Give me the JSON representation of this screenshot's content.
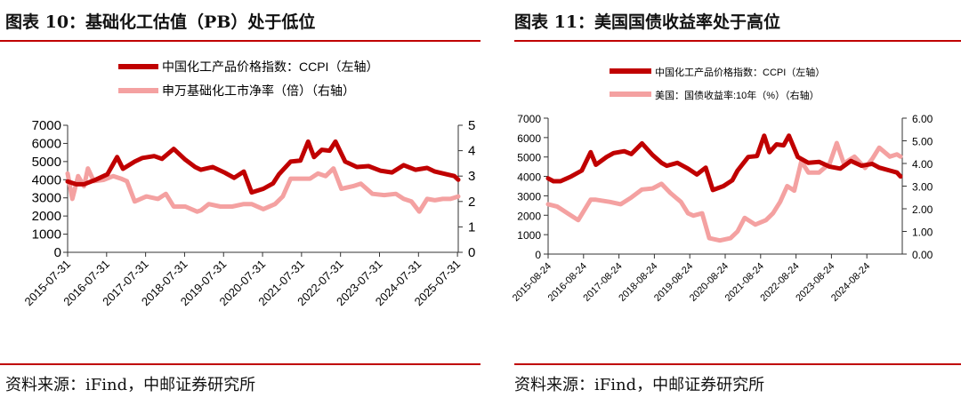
{
  "colors": {
    "accent_red": "#c00000",
    "series_dark": "#c00000",
    "series_light": "#f4a1a1"
  },
  "left": {
    "title": "图表 10：基础化工估值（PB）处于低位",
    "source": "资料来源：iFind，中邮证券研究所"
  },
  "right": {
    "title": "图表 11：美国国债收益率处于高位",
    "source": "资料来源：iFind，中邮证券研究所"
  },
  "chart_data": [
    {
      "type": "line",
      "legend_placement": "top",
      "grid": false,
      "x_ticks": [
        "2015-07-31",
        "2016-07-31",
        "2017-07-31",
        "2018-07-31",
        "2019-07-31",
        "2020-07-31",
        "2021-07-31",
        "2022-07-31",
        "2023-07-31",
        "2024-07-31",
        "2025-07-31"
      ],
      "y_ticks_left": [
        "0",
        "1000",
        "2000",
        "3000",
        "4000",
        "5000",
        "6000",
        "7000"
      ],
      "y_ticks_right": [
        "0",
        "1",
        "2",
        "3",
        "4",
        "5"
      ],
      "ylim_left": [
        0,
        7000
      ],
      "ylim_right": [
        0,
        5
      ],
      "series": [
        {
          "name": "中国化工产品价格指数：CCPI（左轴）",
          "axis": "left",
          "color": "#c00000",
          "x": [
            2015.58,
            2015.8,
            2016.0,
            2016.3,
            2016.6,
            2016.85,
            2017.0,
            2017.3,
            2017.5,
            2017.8,
            2018.0,
            2018.3,
            2018.6,
            2018.85,
            2019.0,
            2019.3,
            2019.6,
            2019.85,
            2020.1,
            2020.3,
            2020.6,
            2020.85,
            2021.0,
            2021.3,
            2021.55,
            2021.75,
            2021.9,
            2022.1,
            2022.3,
            2022.45,
            2022.7,
            2023.0,
            2023.3,
            2023.6,
            2023.9,
            2024.2,
            2024.5,
            2024.8,
            2025.0,
            2025.3,
            2025.5,
            2025.6
          ],
          "y": [
            3900,
            3750,
            3750,
            4000,
            4300,
            5250,
            4600,
            5000,
            5200,
            5300,
            5150,
            5700,
            5100,
            4700,
            4550,
            4700,
            4400,
            4100,
            4450,
            3300,
            3500,
            3800,
            4300,
            5000,
            5050,
            6100,
            5250,
            5650,
            5600,
            6100,
            5000,
            4700,
            4750,
            4500,
            4400,
            4800,
            4550,
            4650,
            4450,
            4300,
            4200,
            4000
          ]
        },
        {
          "name": "申万基础化工市净率（倍）（右轴）",
          "axis": "right",
          "color": "#f4a1a1",
          "x": [
            2015.58,
            2015.7,
            2015.85,
            2016.0,
            2016.1,
            2016.25,
            2016.5,
            2016.75,
            2016.95,
            2017.1,
            2017.3,
            2017.6,
            2017.9,
            2018.1,
            2018.3,
            2018.6,
            2018.9,
            2019.0,
            2019.2,
            2019.5,
            2019.8,
            2020.1,
            2020.3,
            2020.6,
            2020.9,
            2021.1,
            2021.3,
            2021.5,
            2021.7,
            2021.8,
            2022.0,
            2022.2,
            2022.4,
            2022.6,
            2022.9,
            2023.1,
            2023.4,
            2023.7,
            2024.0,
            2024.2,
            2024.4,
            2024.6,
            2024.8,
            2025.0,
            2025.2,
            2025.4,
            2025.6
          ],
          "y": [
            3.1,
            2.1,
            3.0,
            2.6,
            3.3,
            2.8,
            2.85,
            3.0,
            2.9,
            2.8,
            2.0,
            2.2,
            2.1,
            2.3,
            1.8,
            1.8,
            1.6,
            1.65,
            1.9,
            1.8,
            1.8,
            1.9,
            1.9,
            1.7,
            1.9,
            2.2,
            2.9,
            2.9,
            2.9,
            2.9,
            3.1,
            3.0,
            3.3,
            2.5,
            2.6,
            2.7,
            2.3,
            2.25,
            2.3,
            2.1,
            2.0,
            1.6,
            2.1,
            2.05,
            2.1,
            2.1,
            2.2
          ]
        }
      ]
    },
    {
      "type": "line",
      "legend_placement": "top",
      "grid": false,
      "x_ticks": [
        "2015-08-24",
        "2016-08-24",
        "2017-08-24",
        "2018-08-24",
        "2019-08-24",
        "2020-08-24",
        "2021-08-24",
        "2022-08-24",
        "2023-08-24",
        "2024-08-24"
      ],
      "y_ticks_left": [
        "0",
        "1000",
        "2000",
        "3000",
        "4000",
        "5000",
        "6000",
        "7000"
      ],
      "y_ticks_right": [
        "0.00",
        "1.00",
        "2.00",
        "3.00",
        "4.00",
        "5.00",
        "6.00"
      ],
      "ylim_left": [
        0,
        7000
      ],
      "ylim_right": [
        0,
        6
      ],
      "series": [
        {
          "name": "中国化工产品价格指数：CCPI（左轴）",
          "axis": "left",
          "color": "#c00000",
          "x": [
            2015.65,
            2015.8,
            2016.0,
            2016.3,
            2016.6,
            2016.85,
            2017.0,
            2017.3,
            2017.5,
            2017.8,
            2018.0,
            2018.3,
            2018.6,
            2018.85,
            2019.0,
            2019.3,
            2019.6,
            2019.85,
            2020.1,
            2020.3,
            2020.6,
            2020.85,
            2021.0,
            2021.3,
            2021.55,
            2021.75,
            2021.9,
            2022.1,
            2022.3,
            2022.45,
            2022.7,
            2023.0,
            2023.3,
            2023.6,
            2023.9,
            2024.2,
            2024.5,
            2024.8,
            2025.0,
            2025.3,
            2025.5,
            2025.6
          ],
          "y": [
            3900,
            3750,
            3750,
            4000,
            4300,
            5250,
            4600,
            5000,
            5200,
            5300,
            5150,
            5700,
            5100,
            4700,
            4550,
            4700,
            4400,
            4100,
            4450,
            3300,
            3500,
            3800,
            4300,
            5000,
            5050,
            6100,
            5250,
            5650,
            5600,
            6100,
            5000,
            4700,
            4750,
            4500,
            4400,
            4800,
            4550,
            4650,
            4450,
            4300,
            4200,
            4000
          ]
        },
        {
          "name": "美国：国债收益率:10年（%）（右轴）",
          "axis": "right",
          "color": "#f4a1a1",
          "x": [
            2015.65,
            2015.9,
            2016.2,
            2016.5,
            2016.85,
            2017.0,
            2017.4,
            2017.7,
            2018.0,
            2018.3,
            2018.6,
            2018.85,
            2019.1,
            2019.4,
            2019.6,
            2019.75,
            2020.0,
            2020.2,
            2020.5,
            2020.8,
            2021.0,
            2021.2,
            2021.5,
            2021.8,
            2022.0,
            2022.2,
            2022.4,
            2022.6,
            2022.8,
            2023.0,
            2023.3,
            2023.6,
            2023.8,
            2024.0,
            2024.3,
            2024.6,
            2024.8,
            2025.0,
            2025.3,
            2025.5,
            2025.6
          ],
          "y": [
            2.2,
            2.1,
            1.8,
            1.5,
            2.4,
            2.4,
            2.3,
            2.2,
            2.5,
            2.85,
            2.9,
            3.1,
            2.7,
            2.3,
            1.8,
            1.7,
            1.8,
            0.7,
            0.6,
            0.7,
            1.0,
            1.6,
            1.3,
            1.5,
            1.8,
            2.3,
            3.0,
            2.8,
            4.1,
            3.6,
            3.6,
            4.0,
            4.9,
            4.0,
            4.3,
            3.8,
            4.2,
            4.7,
            4.3,
            4.4,
            4.3
          ]
        }
      ]
    }
  ]
}
